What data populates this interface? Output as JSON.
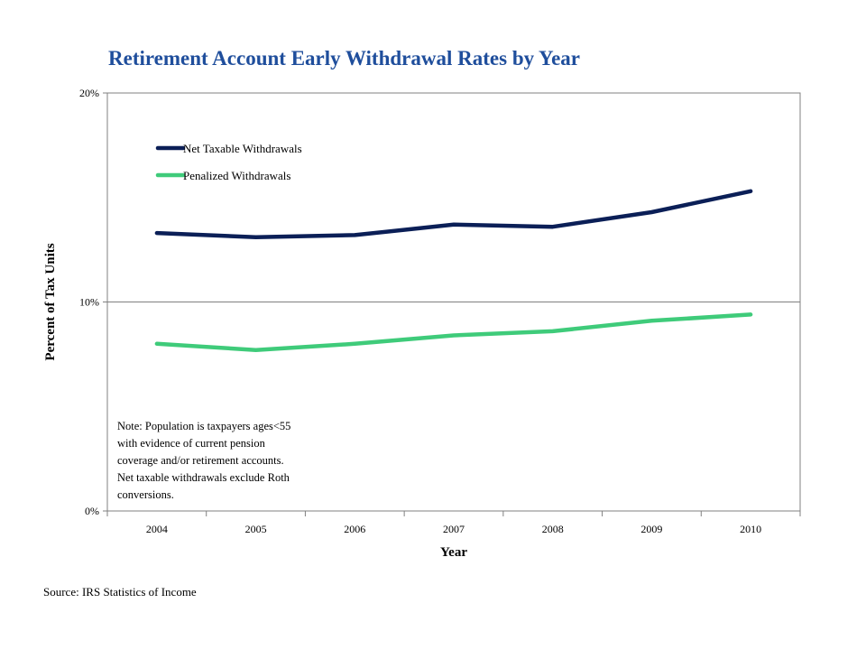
{
  "title": "Retirement Account Early Withdrawal Rates by Year",
  "source": "Source: IRS Statistics of Income",
  "chart_data": {
    "type": "line",
    "title": "Retirement Account Early Withdrawal Rates by Year",
    "xlabel": "Year",
    "ylabel": "Percent of Tax Units",
    "categories": [
      "2004",
      "2005",
      "2006",
      "2007",
      "2008",
      "2009",
      "2010"
    ],
    "y_ticks": [
      "0%",
      "10%",
      "20%"
    ],
    "ylim": [
      0,
      20
    ],
    "grid": "horizontal at 10%",
    "legend_position": "top-left",
    "series": [
      {
        "name": "Net Taxable Withdrawals",
        "color": "#0b1f57",
        "values": [
          13.3,
          13.1,
          13.2,
          13.7,
          13.6,
          14.3,
          15.3
        ]
      },
      {
        "name": "Penalized Withdrawals",
        "color": "#3fcb7a",
        "values": [
          8.0,
          7.7,
          8.0,
          8.4,
          8.6,
          9.1,
          9.4
        ]
      }
    ],
    "annotation": [
      "Note: Population is taxpayers ages<55",
      "with evidence of current pension",
      "coverage and/or retirement accounts.",
      "Net taxable withdrawals exclude Roth",
      "conversions."
    ]
  }
}
